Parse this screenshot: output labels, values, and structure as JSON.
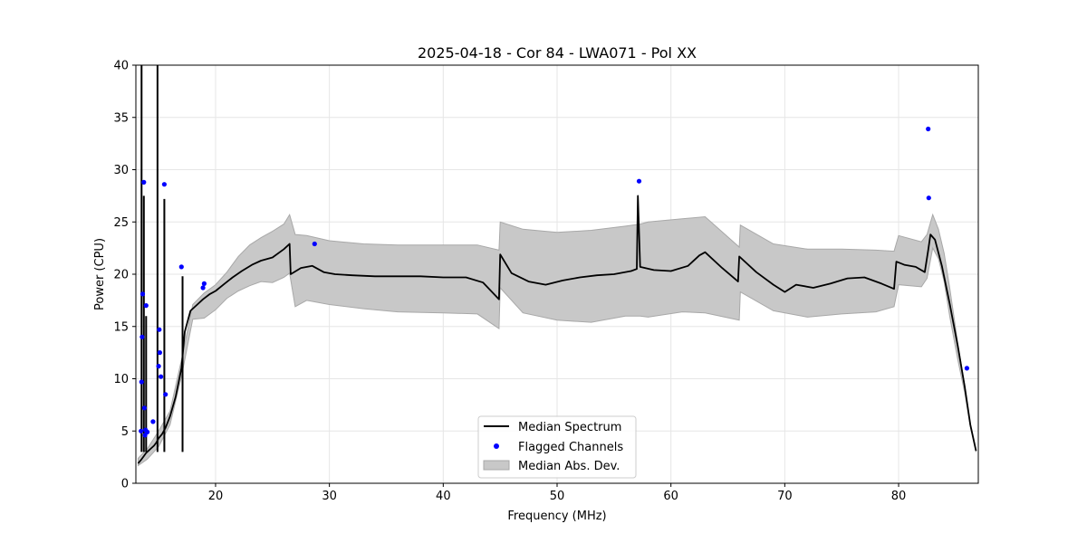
{
  "chart_data": {
    "type": "line",
    "title": "2025-04-18 - Cor 84 - LWA071 - Pol XX",
    "xlabel": "Frequency (MHz)",
    "ylabel": "Power (CPU)",
    "xlim": [
      13.0,
      87.0
    ],
    "ylim": [
      0,
      40
    ],
    "xticks": [
      20,
      30,
      40,
      50,
      60,
      70,
      80
    ],
    "yticks": [
      0,
      5,
      10,
      15,
      20,
      25,
      30,
      35,
      40
    ],
    "grid": true,
    "legend_position": "lower-center",
    "legend": [
      "Median Spectrum",
      "Flagged Channels",
      "Median Abs. Dev."
    ],
    "colors": {
      "line": "#000000",
      "flagged": "#0000ff",
      "band_fill": "#c8c8c8",
      "band_edge": "#a8a8a8"
    },
    "series": [
      {
        "name": "Median Spectrum",
        "x": [
          13.2,
          13.5,
          13.7,
          13.9,
          14.1,
          14.3,
          14.6,
          14.8,
          15.0,
          15.3,
          15.6,
          16.0,
          16.5,
          17.0,
          17.3,
          17.8,
          18.3,
          18.9,
          19.5,
          20.0,
          20.8,
          21.5,
          22.3,
          23.2,
          24.0,
          25.0,
          26.0,
          26.5,
          26.6,
          27.5,
          28.5,
          29.5,
          30.5,
          32.0,
          34.0,
          36.0,
          38.0,
          40.0,
          42.0,
          43.5,
          44.9,
          45.0,
          46.0,
          47.5,
          49.0,
          50.5,
          52.0,
          53.5,
          55.0,
          56.5,
          57.0,
          57.1,
          57.3,
          58.5,
          60.0,
          61.5,
          62.5,
          63.0,
          64.5,
          65.9,
          66.0,
          67.5,
          69.0,
          70.0,
          71.0,
          72.5,
          74.0,
          75.5,
          77.0,
          78.5,
          79.6,
          79.8,
          80.5,
          81.5,
          82.3,
          82.6,
          82.8,
          83.2,
          83.8,
          84.5,
          85.2,
          85.8,
          86.3,
          86.8
        ],
        "values": [
          1.9,
          2.3,
          2.6,
          2.9,
          3.1,
          3.3,
          3.6,
          3.9,
          4.3,
          4.7,
          5.3,
          6.4,
          8.3,
          11.0,
          14.5,
          16.5,
          17.0,
          17.6,
          18.1,
          18.4,
          19.1,
          19.7,
          20.3,
          20.9,
          21.3,
          21.6,
          22.4,
          22.9,
          20.0,
          20.6,
          20.8,
          20.2,
          20.0,
          19.9,
          19.8,
          19.8,
          19.8,
          19.7,
          19.7,
          19.2,
          17.6,
          21.9,
          20.1,
          19.3,
          19.0,
          19.4,
          19.7,
          19.9,
          20.0,
          20.3,
          20.5,
          27.5,
          20.7,
          20.4,
          20.3,
          20.8,
          21.8,
          22.1,
          20.6,
          19.3,
          21.7,
          20.2,
          19.0,
          18.3,
          19.0,
          18.7,
          19.1,
          19.6,
          19.7,
          19.1,
          18.6,
          21.2,
          20.9,
          20.7,
          20.2,
          22.3,
          23.8,
          23.3,
          20.8,
          17.1,
          13.1,
          9.3,
          5.6,
          3.1
        ]
      },
      {
        "name": "Median Abs. Dev.",
        "x": [
          13.2,
          14.0,
          15.0,
          16.0,
          17.0,
          18.0,
          19.0,
          20.0,
          21.0,
          22.0,
          23.0,
          24.0,
          25.0,
          26.0,
          26.5,
          27.0,
          28.0,
          30.0,
          33.0,
          36.0,
          40.0,
          43.0,
          44.9,
          45.0,
          47.0,
          50.0,
          53.0,
          56.0,
          57.3,
          58.0,
          61.0,
          63.0,
          66.0,
          66.1,
          69.0,
          72.0,
          75.0,
          78.0,
          79.6,
          80.0,
          82.0,
          82.5,
          83.0,
          83.5,
          84.0,
          84.5,
          85.2,
          85.8,
          86.3,
          86.8
        ],
        "upper": [
          2.4,
          3.3,
          5.0,
          6.9,
          11.8,
          17.1,
          18.2,
          19.0,
          20.2,
          21.7,
          22.8,
          23.5,
          24.1,
          24.8,
          25.7,
          23.8,
          23.7,
          23.2,
          22.9,
          22.8,
          22.8,
          22.8,
          22.3,
          25.0,
          24.3,
          24.0,
          24.2,
          24.6,
          24.8,
          25.0,
          25.3,
          25.5,
          22.6,
          24.7,
          22.9,
          22.4,
          22.4,
          22.3,
          22.2,
          23.7,
          23.1,
          23.8,
          25.7,
          24.3,
          22.0,
          18.6,
          13.4,
          9.4,
          5.7,
          3.1
        ],
        "lower": [
          1.7,
          2.3,
          3.5,
          5.6,
          10.2,
          15.7,
          15.8,
          16.6,
          17.7,
          18.4,
          18.9,
          19.3,
          19.2,
          19.7,
          20.1,
          16.9,
          17.5,
          17.1,
          16.7,
          16.4,
          16.3,
          16.2,
          14.8,
          18.7,
          16.3,
          15.6,
          15.4,
          16.0,
          16.0,
          15.9,
          16.4,
          16.3,
          15.6,
          18.3,
          16.5,
          15.9,
          16.2,
          16.4,
          16.9,
          19.0,
          18.8,
          19.6,
          22.5,
          21.5,
          19.3,
          15.9,
          11.8,
          8.7,
          5.4,
          3.0
        ]
      },
      {
        "name": "Flagged Channels",
        "x": [
          13.45,
          13.5,
          13.55,
          13.6,
          13.7,
          13.75,
          13.8,
          13.85,
          13.9,
          14.0,
          14.5,
          15.0,
          15.05,
          15.1,
          15.2,
          15.5,
          15.6,
          17.0,
          18.9,
          19.0,
          28.7,
          57.2,
          82.6,
          82.65,
          86.0
        ],
        "values": [
          5.0,
          9.7,
          14.0,
          18.1,
          28.8,
          7.2,
          4.6,
          5.1,
          17.0,
          4.9,
          5.9,
          11.2,
          14.7,
          12.5,
          10.2,
          28.6,
          8.5,
          20.7,
          18.7,
          19.1,
          22.9,
          28.9,
          33.9,
          27.3,
          11.0
        ]
      }
    ]
  }
}
